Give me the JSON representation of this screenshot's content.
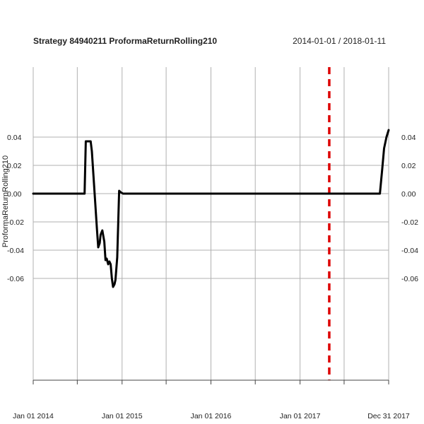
{
  "chart_data": {
    "type": "line",
    "title": "Strategy 84940211 ProformaReturnRolling210",
    "date_range": "2014-01-01 / 2018-01-11",
    "ylabel": "ProformaReturnRolling210",
    "xlim": [
      "2014-01-01",
      "2017-12-31"
    ],
    "ylim": [
      -0.066,
      0.045
    ],
    "grid": true,
    "y_ticks": [
      {
        "value": 0.04,
        "label": "0.04"
      },
      {
        "value": 0.02,
        "label": "0.02"
      },
      {
        "value": 0.0,
        "label": "0.00"
      },
      {
        "value": -0.02,
        "label": "-0.02"
      },
      {
        "value": -0.04,
        "label": "-0.04"
      },
      {
        "value": -0.06,
        "label": "-0.06"
      }
    ],
    "x_ticks": [
      {
        "date": "2014-01-01",
        "label": "Jan 01 2014"
      },
      {
        "date": "2014-07-01",
        "label": ""
      },
      {
        "date": "2015-01-01",
        "label": "Jan 01 2015"
      },
      {
        "date": "2015-07-01",
        "label": ""
      },
      {
        "date": "2016-01-01",
        "label": "Jan 01 2016"
      },
      {
        "date": "2016-07-01",
        "label": ""
      },
      {
        "date": "2017-01-01",
        "label": "Jan 01 2017"
      },
      {
        "date": "2017-07-01",
        "label": ""
      },
      {
        "date": "2017-12-31",
        "label": "Dec 31 2017"
      }
    ],
    "marker": {
      "date": "2017-05-01",
      "color": "#dd0000",
      "style": "dashed"
    },
    "series": [
      {
        "color": "#000000",
        "points": [
          [
            "2014-01-01",
            0.0
          ],
          [
            "2014-07-31",
            0.0
          ],
          [
            "2014-08-05",
            0.037
          ],
          [
            "2014-08-25",
            0.037
          ],
          [
            "2014-08-30",
            0.03
          ],
          [
            "2014-09-20",
            -0.026
          ],
          [
            "2014-09-25",
            -0.038
          ],
          [
            "2014-10-01",
            -0.035
          ],
          [
            "2014-10-05",
            -0.029
          ],
          [
            "2014-10-12",
            -0.026
          ],
          [
            "2014-10-20",
            -0.034
          ],
          [
            "2014-10-25",
            -0.047
          ],
          [
            "2014-10-30",
            -0.046
          ],
          [
            "2014-11-05",
            -0.05
          ],
          [
            "2014-11-10",
            -0.048
          ],
          [
            "2014-11-15",
            -0.05
          ],
          [
            "2014-11-20",
            -0.06
          ],
          [
            "2014-11-25",
            -0.066
          ],
          [
            "2014-12-01",
            -0.064
          ],
          [
            "2014-12-05",
            -0.061
          ],
          [
            "2014-12-12",
            -0.045
          ],
          [
            "2014-12-20",
            0.002
          ],
          [
            "2014-12-26",
            0.001
          ],
          [
            "2015-01-05",
            0.0
          ],
          [
            "2017-11-25",
            0.0
          ],
          [
            "2017-12-05",
            0.018
          ],
          [
            "2017-12-12",
            0.032
          ],
          [
            "2017-12-22",
            0.04
          ],
          [
            "2017-12-31",
            0.045
          ]
        ]
      }
    ]
  }
}
